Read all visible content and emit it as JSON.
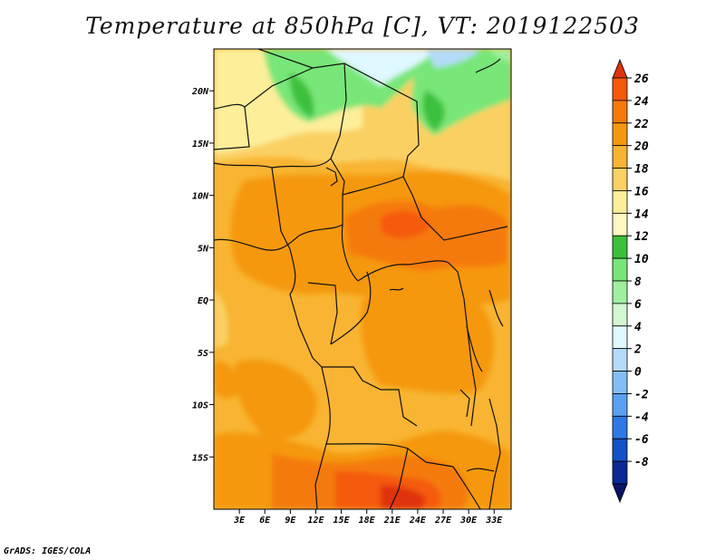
{
  "title": "Temperature at 850hPa [C], VT: 2019122503",
  "credit": "GrADS: IGES/COLA",
  "map": {
    "projection": "latlon",
    "lon_range": [
      0,
      35
    ],
    "lat_range": [
      -20,
      24
    ],
    "lon_ticks": [
      "3E",
      "6E",
      "9E",
      "12E",
      "15E",
      "18E",
      "21E",
      "24E",
      "27E",
      "30E",
      "33E"
    ],
    "lon_tick_values": [
      3,
      6,
      9,
      12,
      15,
      18,
      21,
      24,
      27,
      30,
      33
    ],
    "lat_ticks": [
      "20N",
      "15N",
      "10N",
      "5N",
      "EQ",
      "5S",
      "10S",
      "15S"
    ],
    "lat_tick_values": [
      20,
      15,
      10,
      5,
      0,
      -5,
      -10,
      -15
    ]
  },
  "colorbar": {
    "labels": [
      "26",
      "24",
      "22",
      "20",
      "18",
      "16",
      "14",
      "12",
      "10",
      "8",
      "6",
      "4",
      "2",
      "0",
      "-2",
      "-4",
      "-6",
      "-8"
    ],
    "colors": [
      "#e0320a",
      "#f55a0a",
      "#f57a0a",
      "#f5980f",
      "#f8b432",
      "#fbd064",
      "#fdee9a",
      "#fff8c0",
      "#3cc03c",
      "#78e678",
      "#a0f0a0",
      "#d2f8d2",
      "#e0f8ff",
      "#b4dcfa",
      "#82bef5",
      "#5aa0f0",
      "#2e78e6",
      "#1450c8",
      "#0a2896",
      "#0a1464"
    ]
  }
}
